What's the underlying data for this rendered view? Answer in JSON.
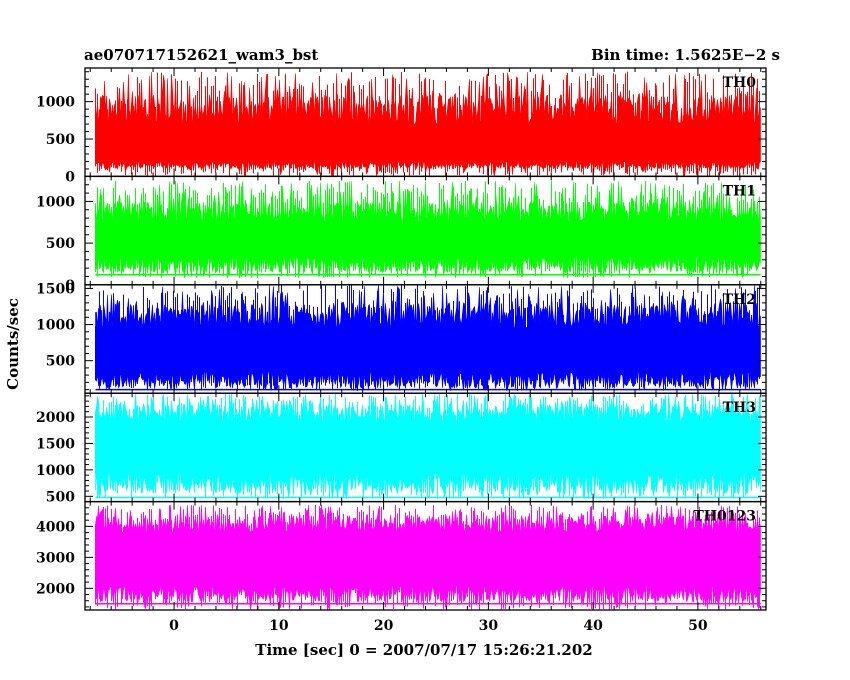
{
  "header": {
    "title": "ae070717152621_wam3_bst",
    "bin_time": "Bin time: 1.5625E−2 s"
  },
  "chart_data": {
    "type": "line",
    "title": "ae070717152621_wam3_bst",
    "xlabel": "Time [sec] 0 = 2007/07/17 15:26:21.202",
    "ylabel": "Counts/sec",
    "xlim": [
      -8.5,
      56.5
    ],
    "data_x_range": [
      -7.5,
      56
    ],
    "x_ticks": [
      0,
      10,
      20,
      30,
      40,
      50
    ],
    "grid": false,
    "panels": [
      {
        "name": "TH0",
        "color": "#ff0000",
        "ylim": [
          0,
          1450
        ],
        "y_ticks": [
          0,
          500,
          1000
        ],
        "baseline": 0,
        "typical_upper": [
          700,
          1100
        ],
        "peak_max": 1400,
        "typical_lower": [
          100,
          200
        ],
        "trough_min": 0
      },
      {
        "name": "TH1",
        "color": "#00ff00",
        "ylim": [
          0,
          1300
        ],
        "y_ticks": [
          0,
          500,
          1000
        ],
        "baseline": 120,
        "typical_upper": [
          750,
          1000
        ],
        "peak_max": 1250,
        "typical_lower": [
          150,
          350
        ],
        "trough_min": 80
      },
      {
        "name": "TH2",
        "color": "#0000ff",
        "ylim": [
          50,
          1550
        ],
        "y_ticks": [
          500,
          1000,
          1500
        ],
        "baseline": 100,
        "typical_upper": [
          950,
          1300
        ],
        "peak_max": 1550,
        "typical_lower": [
          120,
          350
        ],
        "trough_min": 80
      },
      {
        "name": "TH3",
        "color": "#00ffff",
        "ylim": [
          400,
          2450
        ],
        "y_ticks": [
          500,
          1000,
          1500,
          2000
        ],
        "baseline": 480,
        "typical_upper": [
          1900,
          2250
        ],
        "peak_max": 2450,
        "typical_lower": [
          550,
          950
        ],
        "trough_min": 450
      },
      {
        "name": "TH0123",
        "color": "#ff00ff",
        "ylim": [
          1300,
          4800
        ],
        "y_ticks": [
          2000,
          3000,
          4000
        ],
        "baseline": 1500,
        "typical_upper": [
          3800,
          4350
        ],
        "peak_max": 4700,
        "typical_lower": [
          1550,
          2100
        ],
        "trough_min": 1300
      }
    ]
  }
}
